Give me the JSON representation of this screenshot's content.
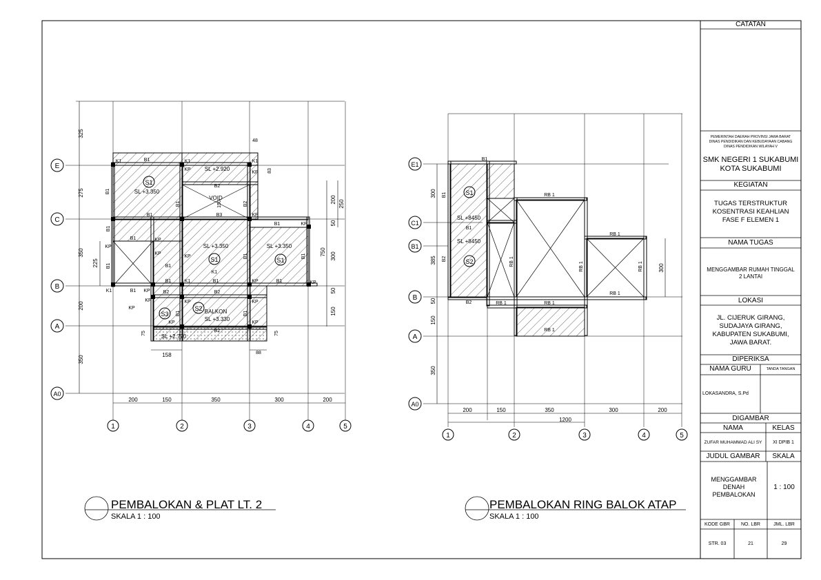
{
  "plans": {
    "left": {
      "title": "PEMBALOKAN & PLAT LT. 2",
      "scale": "SKALA 1 : 100",
      "grid_rows": [
        "E",
        "C",
        "B",
        "A",
        "A0"
      ],
      "grid_cols": [
        "1",
        "2",
        "3",
        "4",
        "5"
      ],
      "dims_left": [
        "325",
        "275",
        "350",
        "200",
        "350",
        "225"
      ],
      "dims_bottom": [
        "200",
        "150",
        "350",
        "300",
        "200"
      ],
      "dims_right": [
        "200",
        "250",
        "50",
        "750",
        "300",
        "50",
        "150"
      ],
      "dims_misc": [
        "48",
        "83",
        "158",
        "88",
        "75",
        "75",
        "150"
      ],
      "slabs": [
        {
          "id": "S1",
          "level": "SL +3.350"
        },
        {
          "id": "S1",
          "level": "SL +3.350"
        },
        {
          "id": "S1",
          "level": "SL +3.350"
        },
        {
          "id": "S2",
          "level": "SL +3.330"
        },
        {
          "id": "S3",
          "level": ""
        }
      ],
      "levels": [
        "SL +2.920",
        "SL +2.770"
      ],
      "labels": {
        "void": "VOID",
        "balkon": "BALKON",
        "dim150": "150"
      },
      "beams": [
        "B1",
        "B2",
        "B3",
        "K1",
        "KP"
      ]
    },
    "right": {
      "title": "PEMBALOKAN RING BALOK ATAP",
      "scale": "SKALA 1 : 100",
      "grid_rows": [
        "E1",
        "C1",
        "B1",
        "B",
        "A",
        "A0"
      ],
      "grid_cols": [
        "1",
        "2",
        "3",
        "4",
        "5"
      ],
      "dims_left": [
        "300",
        "385",
        "50",
        "150",
        "350"
      ],
      "dims_bottom": [
        "200",
        "150",
        "350",
        "300",
        "200"
      ],
      "dim_total": "1200",
      "dim_right": "300",
      "slabs": [
        {
          "id": "S1",
          "level": "SL +8450"
        },
        {
          "id": "S2",
          "level": "SL +8450"
        }
      ],
      "beams": [
        "B1",
        "B2",
        "RB 1"
      ]
    }
  },
  "title_block": {
    "catatan": "CATATAN",
    "agency_line1": "PEMERINTAH DAERAH PROVINSI JAWA BARAT",
    "agency_line2": "DINAS PENDIDIKAN DAN KEBUDAYAAN CABANG",
    "agency_line3": "DINAS PENDIDIKAN WILAYAH V",
    "school_line1": "SMK NEGERI 1 SUKABUMI",
    "school_line2": "KOTA SUKABUMI",
    "kegiatan_label": "KEGIATAN",
    "kegiatan_line1": "TUGAS TERSTRUKTUR",
    "kegiatan_line2": "KOSENTRASI KEAHLIAN",
    "kegiatan_line3": "FASE F ELEMEN 1",
    "nama_tugas_label": "NAMA TUGAS",
    "nama_tugas_line1": "MENGGAMBAR RUMAH TINGGAL",
    "nama_tugas_line2": "2 LANTAI",
    "lokasi_label": "LOKASI",
    "lokasi_line1": "JL. CIJERUK GIRANG,",
    "lokasi_line2": "SUDAJAYA GIRANG,",
    "lokasi_line3": "KABUPATEN SUKABUMI,",
    "lokasi_line4": "JAWA BARAT.",
    "diperiksa_label": "DIPERIKSA",
    "nama_guru_label": "NAMA GURU",
    "tanda_tangan_label": "TANDA TANGAN",
    "nama_guru": "LOKASANDRA, S.Pd",
    "digambar_label": "DIGAMBAR",
    "nama_label": "NAMA",
    "kelas_label": "KELAS",
    "nama": "ZUFAR MUHAMMAD ALI SY",
    "kelas": "XI DPIB 1",
    "judul_label": "JUDUL GAMBAR",
    "skala_label": "SKALA",
    "judul_line1": "MENGGAMBAR",
    "judul_line2": "DENAH",
    "judul_line3": "PEMBALOKAN",
    "skala": "1 : 100",
    "kode_label": "KODE GBR",
    "no_lbr_label": "NO. LBR",
    "jml_lbr_label": "JML. LBR",
    "kode": "STR. 03",
    "no_lbr": "21",
    "jml_lbr": "29"
  }
}
